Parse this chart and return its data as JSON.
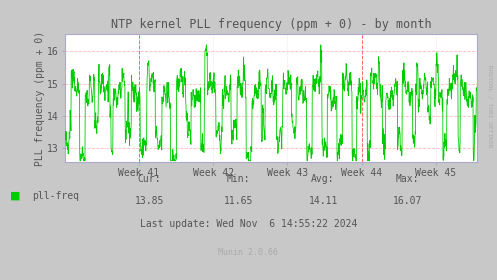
{
  "title": "NTP kernel PLL frequency (ppm + 0) - by month",
  "ylabel": "PLL frequency (ppm + 0)",
  "bg_color": "#c8c8c8",
  "plot_bg_color": "#ffffff",
  "line_color": "#00cc00",
  "grid_color": "#ffbbbb",
  "vline_color": "#ff6666",
  "text_color": "#555555",
  "title_color": "#555555",
  "axis_color": "#aaaacc",
  "yticks": [
    13,
    14,
    15,
    16
  ],
  "ylim": [
    12.55,
    16.55
  ],
  "xtick_labels": [
    "Week 41",
    "Week 42",
    "Week 43",
    "Week 44",
    "Week 45"
  ],
  "xtick_positions": [
    0.18,
    0.36,
    0.54,
    0.72,
    0.9
  ],
  "vline_positions": [
    0.18,
    0.72
  ],
  "legend_label": "pll-freq",
  "legend_color": "#00cc00",
  "cur_label": "Cur:",
  "min_label": "Min:",
  "avg_label": "Avg:",
  "max_label": "Max:",
  "cur_val": "13.85",
  "min_val": "11.65",
  "avg_val": "14.11",
  "max_val": "16.07",
  "last_update": "Last update: Wed Nov  6 14:55:22 2024",
  "munin_text": "Munin 2.0.66",
  "watermark": "RRDTOOL / TOBI OETIKER",
  "seed": 42,
  "n_points": 1500
}
